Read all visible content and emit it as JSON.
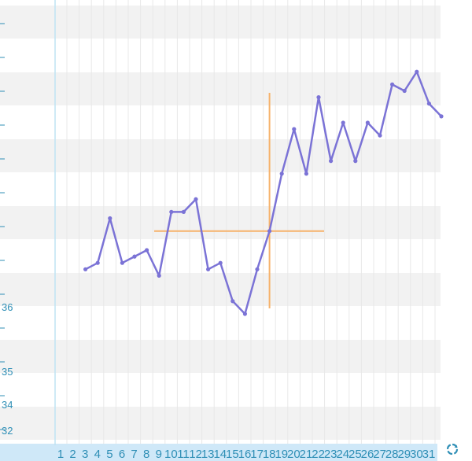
{
  "chart_data": {
    "type": "line",
    "x": [
      "1",
      "2",
      "3",
      "4",
      "5",
      "6",
      "7",
      "8",
      "9",
      "10",
      "11",
      "12",
      "13",
      "14",
      "15",
      "16",
      "17",
      "18",
      "19",
      "20",
      "21",
      "22",
      "23",
      "24",
      "25",
      "26",
      "27",
      "28",
      "29",
      "30",
      "31"
    ],
    "series": [
      {
        "values": [
          null,
          36.9,
          37.0,
          37.7,
          37.0,
          37.1,
          37.2,
          36.8,
          37.8,
          37.8,
          38.0,
          36.9,
          37.0,
          36.4,
          36.2,
          36.9,
          37.5,
          38.4,
          39.1,
          38.4,
          39.6,
          38.6,
          39.2,
          38.6,
          39.2,
          39.0,
          39.8,
          39.7,
          40.0,
          39.5,
          39.3
        ]
      }
    ],
    "y_tick_labels": [
      "36",
      "35",
      "34",
      "32"
    ],
    "crosshair": {
      "x": "17",
      "y": 37.5
    },
    "colors": {
      "line": "#7b73d6",
      "crosshair": "#f6b26b",
      "axis": "#2f8fb6",
      "band": "#f2f2f2",
      "xbar": "#cfe8f8"
    }
  },
  "controls": {
    "refresh_icon": "refresh-icon"
  }
}
